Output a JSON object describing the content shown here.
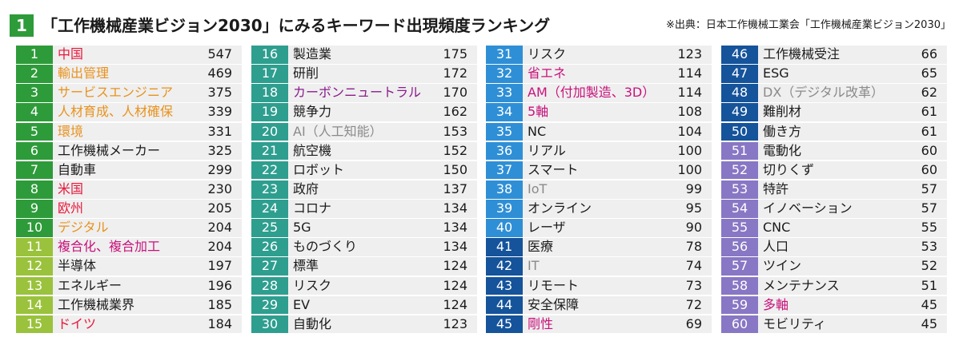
{
  "header": {
    "number": "1",
    "title": "「工作機械産業ビジョン2030」にみるキーワード出現頻度ランキング",
    "source": "※出典：日本工作機械工業会「工作機械産業ビジョン2030」"
  },
  "colors": {
    "title_box": "#2e9b3a",
    "rank_1_10": "#2e9b3a",
    "rank_11_15": "#9ac23c",
    "rank_16_30": "#2e9e8f",
    "rank_31_40": "#2f8fd6",
    "rank_41_50": "#15539b",
    "rank_51_60": "#8877c4",
    "row_bg": "#efefef"
  },
  "chart_data": {
    "type": "table",
    "title": "「工作機械産業ビジョン2030」にみるキーワード出現頻度ランキング",
    "rows": [
      {
        "rank": "1",
        "keyword": "中国",
        "count": 547,
        "text_color": "red"
      },
      {
        "rank": "2",
        "keyword": "輸出管理",
        "count": 469,
        "text_color": "orange"
      },
      {
        "rank": "3",
        "keyword": "サービスエンジニア",
        "count": 375,
        "text_color": "orange"
      },
      {
        "rank": "4",
        "keyword": "人材育成、人材確保",
        "count": 339,
        "text_color": "orange"
      },
      {
        "rank": "5",
        "keyword": "環境",
        "count": 331,
        "text_color": "orange"
      },
      {
        "rank": "6",
        "keyword": "工作機械メーカー",
        "count": 325,
        "text_color": "black"
      },
      {
        "rank": "7",
        "keyword": "自動車",
        "count": 299,
        "text_color": "black"
      },
      {
        "rank": "8",
        "keyword": "米国",
        "count": 230,
        "text_color": "red"
      },
      {
        "rank": "9",
        "keyword": "欧州",
        "count": 205,
        "text_color": "red"
      },
      {
        "rank": "10",
        "keyword": "デジタル",
        "count": 204,
        "text_color": "orange"
      },
      {
        "rank": "11",
        "keyword": "複合化、複合加工",
        "count": 204,
        "text_color": "magenta"
      },
      {
        "rank": "12",
        "keyword": "半導体",
        "count": 197,
        "text_color": "black"
      },
      {
        "rank": "13",
        "keyword": "エネルギー",
        "count": 196,
        "text_color": "black"
      },
      {
        "rank": "14",
        "keyword": "工作機械業界",
        "count": 185,
        "text_color": "black"
      },
      {
        "rank": "15",
        "keyword": "ドイツ",
        "count": 184,
        "text_color": "red"
      },
      {
        "rank": "16",
        "keyword": "製造業",
        "count": 175,
        "text_color": "black"
      },
      {
        "rank": "17",
        "keyword": "研削",
        "count": 172,
        "text_color": "black"
      },
      {
        "rank": "18",
        "keyword": "カーボンニュートラル",
        "count": 170,
        "text_color": "purple"
      },
      {
        "rank": "19",
        "keyword": "競争力",
        "count": 162,
        "text_color": "black"
      },
      {
        "rank": "20",
        "keyword": "AI（人工知能）",
        "count": 153,
        "text_color": "gray"
      },
      {
        "rank": "21",
        "keyword": "航空機",
        "count": 152,
        "text_color": "black"
      },
      {
        "rank": "22",
        "keyword": "ロボット",
        "count": 150,
        "text_color": "black"
      },
      {
        "rank": "23",
        "keyword": "政府",
        "count": 137,
        "text_color": "black"
      },
      {
        "rank": "24",
        "keyword": "コロナ",
        "count": 134,
        "text_color": "black"
      },
      {
        "rank": "25",
        "keyword": "5G",
        "count": 134,
        "text_color": "black"
      },
      {
        "rank": "26",
        "keyword": "ものづくり",
        "count": 134,
        "text_color": "black"
      },
      {
        "rank": "27",
        "keyword": "標準",
        "count": 124,
        "text_color": "black"
      },
      {
        "rank": "28",
        "keyword": "リスク",
        "count": 124,
        "text_color": "black"
      },
      {
        "rank": "29",
        "keyword": "EV",
        "count": 124,
        "text_color": "black"
      },
      {
        "rank": "30",
        "keyword": "自動化",
        "count": 123,
        "text_color": "black"
      },
      {
        "rank": "31",
        "keyword": "リスク",
        "count": 123,
        "text_color": "black"
      },
      {
        "rank": "32",
        "keyword": "省エネ",
        "count": 114,
        "text_color": "magenta"
      },
      {
        "rank": "33",
        "keyword": "AM（付加製造、3D）",
        "count": 114,
        "text_color": "magenta"
      },
      {
        "rank": "34",
        "keyword": "5軸",
        "count": 108,
        "text_color": "magenta"
      },
      {
        "rank": "35",
        "keyword": "NC",
        "count": 104,
        "text_color": "black"
      },
      {
        "rank": "36",
        "keyword": "リアル",
        "count": 100,
        "text_color": "black"
      },
      {
        "rank": "37",
        "keyword": "スマート",
        "count": 100,
        "text_color": "black"
      },
      {
        "rank": "38",
        "keyword": "IoT",
        "count": 99,
        "text_color": "gray"
      },
      {
        "rank": "39",
        "keyword": "オンライン",
        "count": 95,
        "text_color": "black"
      },
      {
        "rank": "40",
        "keyword": "レーザ",
        "count": 90,
        "text_color": "black"
      },
      {
        "rank": "41",
        "keyword": "医療",
        "count": 78,
        "text_color": "black"
      },
      {
        "rank": "42",
        "keyword": "IT",
        "count": 74,
        "text_color": "gray"
      },
      {
        "rank": "43",
        "keyword": "リモート",
        "count": 73,
        "text_color": "black"
      },
      {
        "rank": "44",
        "keyword": "安全保障",
        "count": 72,
        "text_color": "black"
      },
      {
        "rank": "45",
        "keyword": "剛性",
        "count": 69,
        "text_color": "magenta"
      },
      {
        "rank": "46",
        "keyword": "工作機械受注",
        "count": 66,
        "text_color": "black"
      },
      {
        "rank": "47",
        "keyword": "ESG",
        "count": 65,
        "text_color": "black"
      },
      {
        "rank": "48",
        "keyword": "DX（デジタル改革）",
        "count": 62,
        "text_color": "gray"
      },
      {
        "rank": "49",
        "keyword": "難削材",
        "count": 61,
        "text_color": "black"
      },
      {
        "rank": "50",
        "keyword": "働き方",
        "count": 61,
        "text_color": "black"
      },
      {
        "rank": "51",
        "keyword": "電動化",
        "count": 60,
        "text_color": "black"
      },
      {
        "rank": "52",
        "keyword": "切りくず",
        "count": 60,
        "text_color": "black"
      },
      {
        "rank": "53",
        "keyword": "特許",
        "count": 57,
        "text_color": "black"
      },
      {
        "rank": "54",
        "keyword": "イノベーション",
        "count": 57,
        "text_color": "black"
      },
      {
        "rank": "55",
        "keyword": "CNC",
        "count": 55,
        "text_color": "black"
      },
      {
        "rank": "56",
        "keyword": "人口",
        "count": 53,
        "text_color": "black"
      },
      {
        "rank": "57",
        "keyword": "ツイン",
        "count": 52,
        "text_color": "black"
      },
      {
        "rank": "58",
        "keyword": "メンテナンス",
        "count": 51,
        "text_color": "black"
      },
      {
        "rank": "59",
        "keyword": "多軸",
        "count": 45,
        "text_color": "magenta"
      },
      {
        "rank": "60",
        "keyword": "モビリティ",
        "count": 45,
        "text_color": "black"
      }
    ]
  }
}
